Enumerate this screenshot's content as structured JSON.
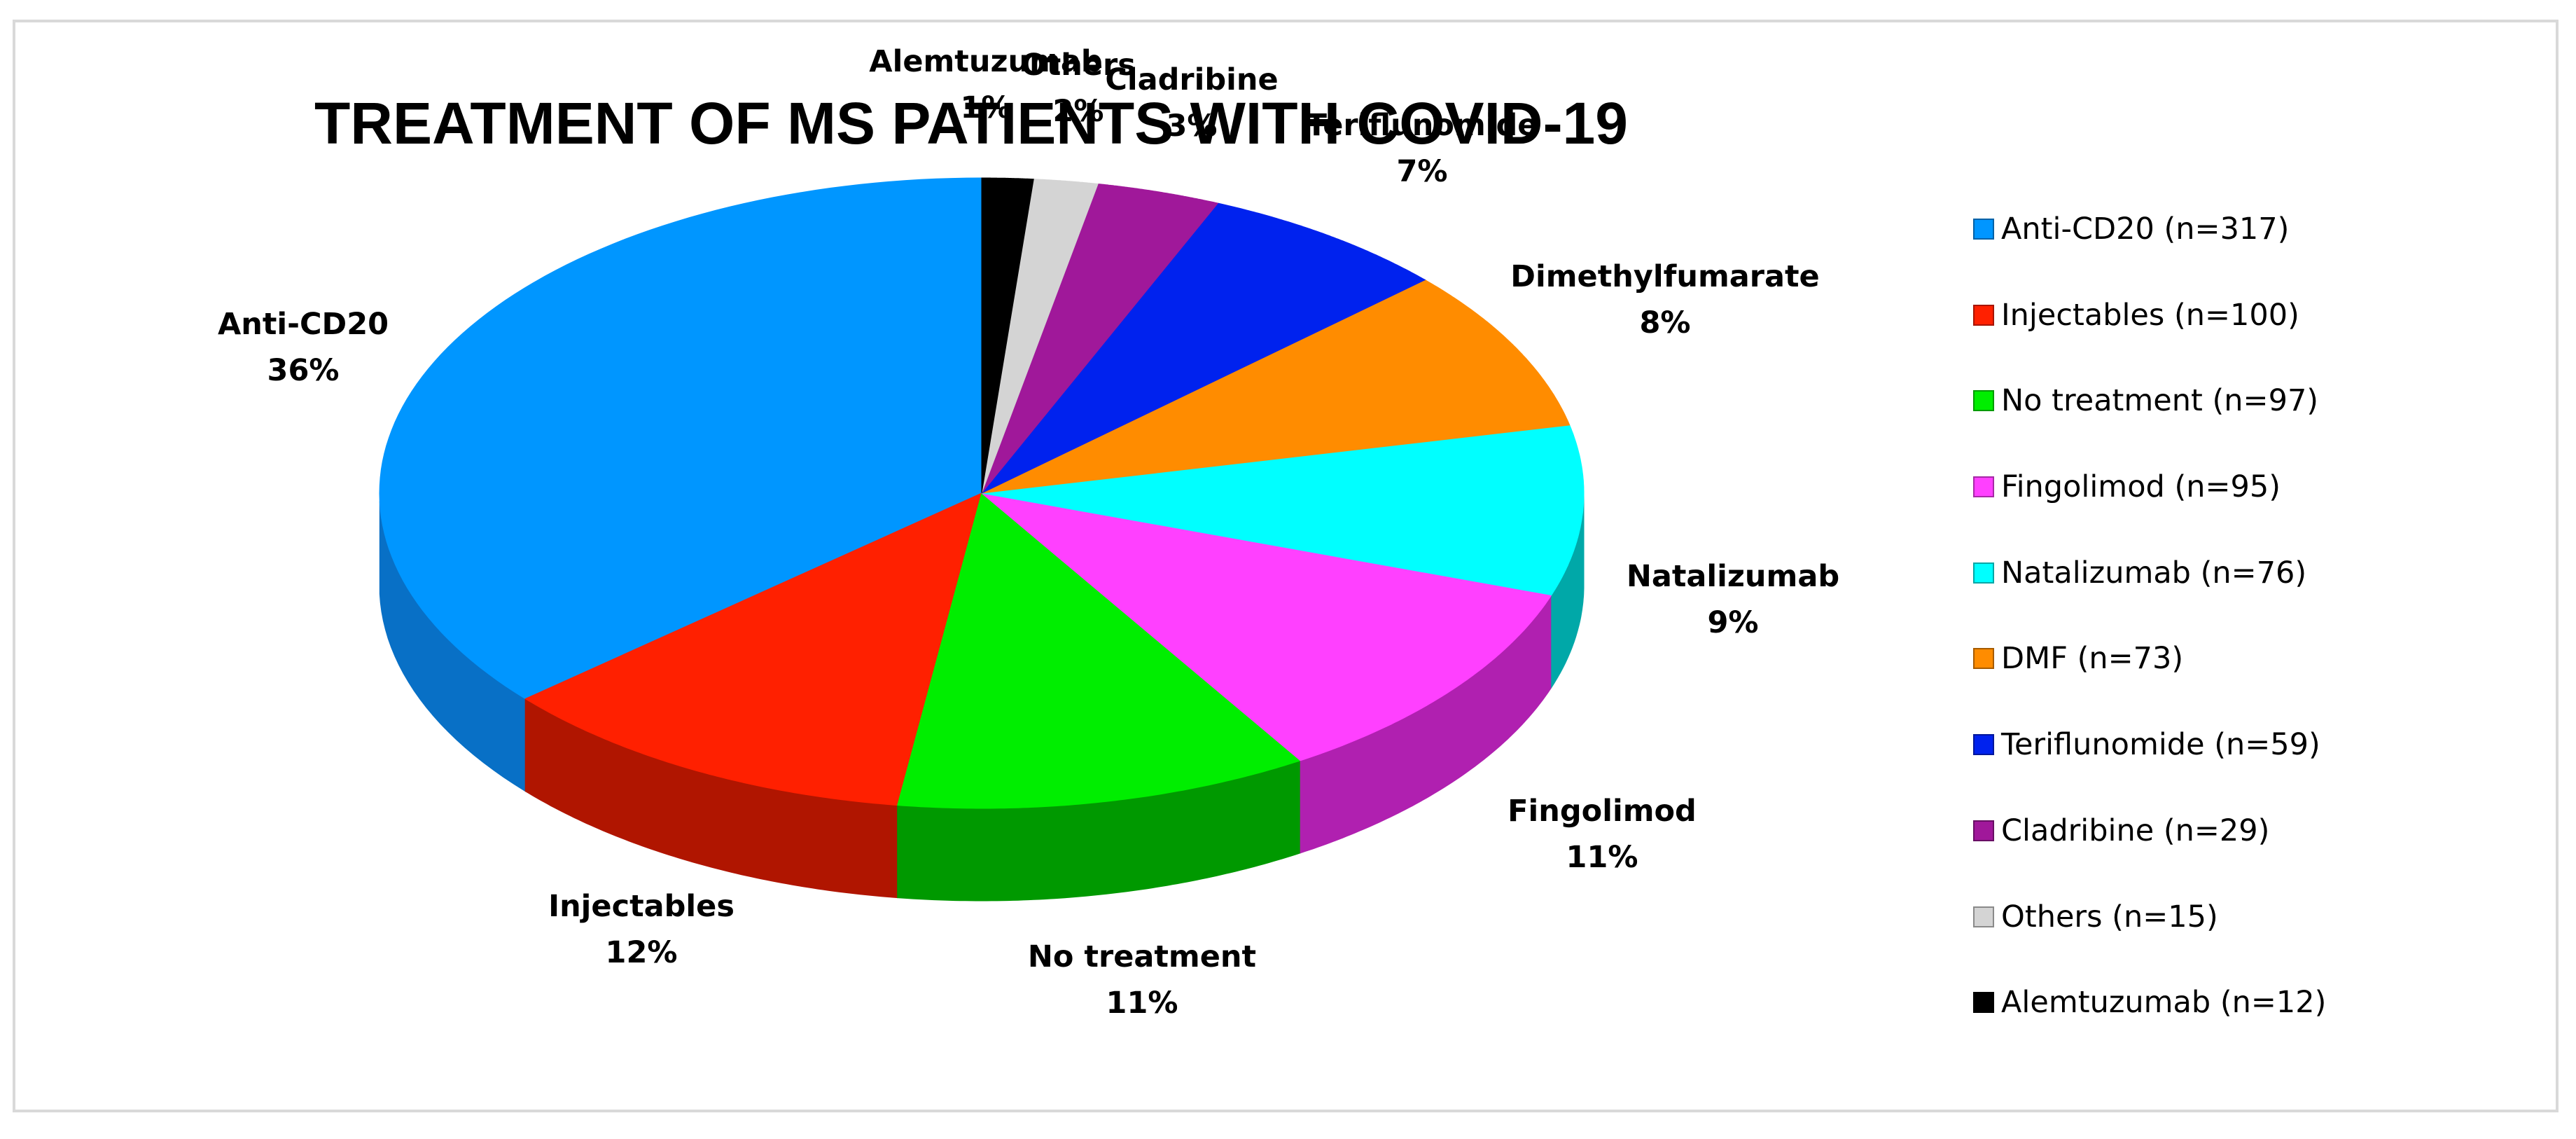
{
  "chart_data": {
    "type": "pie",
    "title": "TREATMENT OF MS PATIENTS WITH COVID-19",
    "legend_position": "right",
    "slices": [
      {
        "name": "Anti-CD20",
        "n": 317,
        "percent": "36%",
        "legend": "Anti-CD20 (n=317)",
        "color": "#0096ff",
        "side_color": "#0870c6"
      },
      {
        "name": "Injectables",
        "n": 100,
        "percent": "12%",
        "legend": "Injectables (n=100)",
        "color": "#ff2000",
        "side_color": "#b01500"
      },
      {
        "name": "No treatment",
        "n": 97,
        "percent": "11%",
        "legend": "No treatment (n=97)",
        "color": "#00ee00",
        "side_color": "#009900"
      },
      {
        "name": "Fingolimod",
        "n": 95,
        "percent": "11%",
        "legend": "Fingolimod (n=95)",
        "color": "#ff40ff",
        "side_color": "#b020b0"
      },
      {
        "name": "Natalizumab",
        "n": 76,
        "percent": "9%",
        "legend": "Natalizumab (n=76)",
        "color": "#00ffff",
        "side_color": "#00a8a8"
      },
      {
        "name": "Dimethylfumarate",
        "n": 73,
        "percent": "8%",
        "legend": "DMF (n=73)",
        "color": "#ff8c00",
        "side_color": "#7a3c00"
      },
      {
        "name": "Teriflunomide",
        "n": 59,
        "percent": "7%",
        "legend": "Teriflunomide (n=59)",
        "color": "#0022ee",
        "side_color": "#000060"
      },
      {
        "name": "Cladribine",
        "n": 29,
        "percent": "3%",
        "legend": "Cladribine (n=29)",
        "color": "#a0189a",
        "side_color": "#4e0a40"
      },
      {
        "name": "Others",
        "n": 15,
        "percent": "2%",
        "legend": "Others (n=15)",
        "color": "#d4d4d4",
        "side_color": "#a0a0a0"
      },
      {
        "name": "Alemtuzumab",
        "n": 12,
        "percent": "1%",
        "legend": "Alemtuzumab (n=12)",
        "color": "#000000",
        "side_color": "#000000"
      }
    ]
  }
}
